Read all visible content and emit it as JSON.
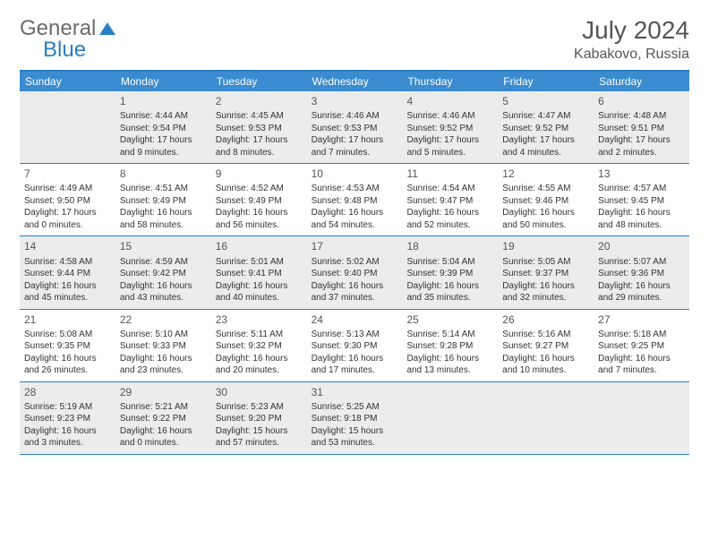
{
  "brand": {
    "part1": "General",
    "part2": "Blue"
  },
  "title": "July 2024",
  "location": "Kabakovo, Russia",
  "colors": {
    "header_bg": "#3a8bd0",
    "border": "#2b7fc3",
    "shaded": "#ececec",
    "text": "#333333",
    "title_text": "#555555"
  },
  "weekdays": [
    "Sunday",
    "Monday",
    "Tuesday",
    "Wednesday",
    "Thursday",
    "Friday",
    "Saturday"
  ],
  "weeks": [
    [
      {
        "num": "",
        "lines": [],
        "shaded": true
      },
      {
        "num": "1",
        "lines": [
          "Sunrise: 4:44 AM",
          "Sunset: 9:54 PM",
          "Daylight: 17 hours",
          "and 9 minutes."
        ],
        "shaded": true
      },
      {
        "num": "2",
        "lines": [
          "Sunrise: 4:45 AM",
          "Sunset: 9:53 PM",
          "Daylight: 17 hours",
          "and 8 minutes."
        ],
        "shaded": true
      },
      {
        "num": "3",
        "lines": [
          "Sunrise: 4:46 AM",
          "Sunset: 9:53 PM",
          "Daylight: 17 hours",
          "and 7 minutes."
        ],
        "shaded": true
      },
      {
        "num": "4",
        "lines": [
          "Sunrise: 4:46 AM",
          "Sunset: 9:52 PM",
          "Daylight: 17 hours",
          "and 5 minutes."
        ],
        "shaded": true
      },
      {
        "num": "5",
        "lines": [
          "Sunrise: 4:47 AM",
          "Sunset: 9:52 PM",
          "Daylight: 17 hours",
          "and 4 minutes."
        ],
        "shaded": true
      },
      {
        "num": "6",
        "lines": [
          "Sunrise: 4:48 AM",
          "Sunset: 9:51 PM",
          "Daylight: 17 hours",
          "and 2 minutes."
        ],
        "shaded": true
      }
    ],
    [
      {
        "num": "7",
        "lines": [
          "Sunrise: 4:49 AM",
          "Sunset: 9:50 PM",
          "Daylight: 17 hours",
          "and 0 minutes."
        ]
      },
      {
        "num": "8",
        "lines": [
          "Sunrise: 4:51 AM",
          "Sunset: 9:49 PM",
          "Daylight: 16 hours",
          "and 58 minutes."
        ]
      },
      {
        "num": "9",
        "lines": [
          "Sunrise: 4:52 AM",
          "Sunset: 9:49 PM",
          "Daylight: 16 hours",
          "and 56 minutes."
        ]
      },
      {
        "num": "10",
        "lines": [
          "Sunrise: 4:53 AM",
          "Sunset: 9:48 PM",
          "Daylight: 16 hours",
          "and 54 minutes."
        ]
      },
      {
        "num": "11",
        "lines": [
          "Sunrise: 4:54 AM",
          "Sunset: 9:47 PM",
          "Daylight: 16 hours",
          "and 52 minutes."
        ]
      },
      {
        "num": "12",
        "lines": [
          "Sunrise: 4:55 AM",
          "Sunset: 9:46 PM",
          "Daylight: 16 hours",
          "and 50 minutes."
        ]
      },
      {
        "num": "13",
        "lines": [
          "Sunrise: 4:57 AM",
          "Sunset: 9:45 PM",
          "Daylight: 16 hours",
          "and 48 minutes."
        ]
      }
    ],
    [
      {
        "num": "14",
        "lines": [
          "Sunrise: 4:58 AM",
          "Sunset: 9:44 PM",
          "Daylight: 16 hours",
          "and 45 minutes."
        ],
        "shaded": true
      },
      {
        "num": "15",
        "lines": [
          "Sunrise: 4:59 AM",
          "Sunset: 9:42 PM",
          "Daylight: 16 hours",
          "and 43 minutes."
        ],
        "shaded": true
      },
      {
        "num": "16",
        "lines": [
          "Sunrise: 5:01 AM",
          "Sunset: 9:41 PM",
          "Daylight: 16 hours",
          "and 40 minutes."
        ],
        "shaded": true
      },
      {
        "num": "17",
        "lines": [
          "Sunrise: 5:02 AM",
          "Sunset: 9:40 PM",
          "Daylight: 16 hours",
          "and 37 minutes."
        ],
        "shaded": true
      },
      {
        "num": "18",
        "lines": [
          "Sunrise: 5:04 AM",
          "Sunset: 9:39 PM",
          "Daylight: 16 hours",
          "and 35 minutes."
        ],
        "shaded": true
      },
      {
        "num": "19",
        "lines": [
          "Sunrise: 5:05 AM",
          "Sunset: 9:37 PM",
          "Daylight: 16 hours",
          "and 32 minutes."
        ],
        "shaded": true
      },
      {
        "num": "20",
        "lines": [
          "Sunrise: 5:07 AM",
          "Sunset: 9:36 PM",
          "Daylight: 16 hours",
          "and 29 minutes."
        ],
        "shaded": true
      }
    ],
    [
      {
        "num": "21",
        "lines": [
          "Sunrise: 5:08 AM",
          "Sunset: 9:35 PM",
          "Daylight: 16 hours",
          "and 26 minutes."
        ]
      },
      {
        "num": "22",
        "lines": [
          "Sunrise: 5:10 AM",
          "Sunset: 9:33 PM",
          "Daylight: 16 hours",
          "and 23 minutes."
        ]
      },
      {
        "num": "23",
        "lines": [
          "Sunrise: 5:11 AM",
          "Sunset: 9:32 PM",
          "Daylight: 16 hours",
          "and 20 minutes."
        ]
      },
      {
        "num": "24",
        "lines": [
          "Sunrise: 5:13 AM",
          "Sunset: 9:30 PM",
          "Daylight: 16 hours",
          "and 17 minutes."
        ]
      },
      {
        "num": "25",
        "lines": [
          "Sunrise: 5:14 AM",
          "Sunset: 9:28 PM",
          "Daylight: 16 hours",
          "and 13 minutes."
        ]
      },
      {
        "num": "26",
        "lines": [
          "Sunrise: 5:16 AM",
          "Sunset: 9:27 PM",
          "Daylight: 16 hours",
          "and 10 minutes."
        ]
      },
      {
        "num": "27",
        "lines": [
          "Sunrise: 5:18 AM",
          "Sunset: 9:25 PM",
          "Daylight: 16 hours",
          "and 7 minutes."
        ]
      }
    ],
    [
      {
        "num": "28",
        "lines": [
          "Sunrise: 5:19 AM",
          "Sunset: 9:23 PM",
          "Daylight: 16 hours",
          "and 3 minutes."
        ],
        "shaded": true
      },
      {
        "num": "29",
        "lines": [
          "Sunrise: 5:21 AM",
          "Sunset: 9:22 PM",
          "Daylight: 16 hours",
          "and 0 minutes."
        ],
        "shaded": true
      },
      {
        "num": "30",
        "lines": [
          "Sunrise: 5:23 AM",
          "Sunset: 9:20 PM",
          "Daylight: 15 hours",
          "and 57 minutes."
        ],
        "shaded": true
      },
      {
        "num": "31",
        "lines": [
          "Sunrise: 5:25 AM",
          "Sunset: 9:18 PM",
          "Daylight: 15 hours",
          "and 53 minutes."
        ],
        "shaded": true
      },
      {
        "num": "",
        "lines": [],
        "shaded": true
      },
      {
        "num": "",
        "lines": [],
        "shaded": true
      },
      {
        "num": "",
        "lines": [],
        "shaded": true
      }
    ]
  ]
}
